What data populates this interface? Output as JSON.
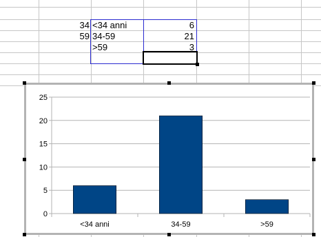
{
  "spreadsheet": {
    "rows": [
      {
        "age_limit": "34",
        "label": "<34 anni",
        "count": "6"
      },
      {
        "age_limit": "59",
        "label": "34-59",
        "count": "21"
      },
      {
        "age_limit": "",
        "label": ">59",
        "count": "3"
      }
    ]
  },
  "chart_data": {
    "type": "bar",
    "categories": [
      "<34 anni",
      "34-59",
      ">59"
    ],
    "values": [
      6,
      21,
      3
    ],
    "title": "",
    "xlabel": "",
    "ylabel": "",
    "ylim": [
      0,
      25
    ],
    "yticks": [
      0,
      5,
      10,
      15,
      20,
      25
    ],
    "bar_color": "#004586",
    "grid": true,
    "legend": "none"
  }
}
